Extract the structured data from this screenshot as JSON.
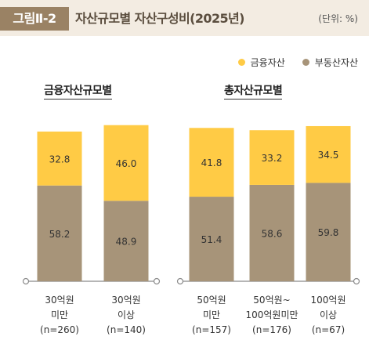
{
  "header": {
    "figure_number": "그림Ⅱ-2",
    "title": "자산규모별 자산구성비(2025년)",
    "unit": "(단위: %)"
  },
  "legend": [
    {
      "label": "금융자산",
      "color": "#ffcb45"
    },
    {
      "label": "부동산자산",
      "color": "#a79479"
    }
  ],
  "groups": [
    {
      "title": "금융자산규모별"
    },
    {
      "title": "총자산규모별"
    }
  ],
  "chart_data": {
    "type": "bar",
    "stacked": true,
    "ylim": [
      0,
      100
    ],
    "categories": [
      [
        "30억원",
        "미만",
        "(n=260)"
      ],
      [
        "30억원",
        "이상",
        "(n=140)"
      ],
      [
        "50억원",
        "미만",
        "(n=157)"
      ],
      [
        "50억원~",
        "100억원미만",
        "(n=176)"
      ],
      [
        "100억원",
        "이상",
        "(n=67)"
      ]
    ],
    "series": [
      {
        "name": "부동산자산",
        "values": [
          58.2,
          48.9,
          51.4,
          58.6,
          59.8
        ],
        "value_labels": [
          "58.2",
          "48.9",
          "51.4",
          "58.6",
          "59.8"
        ],
        "color": "#a79479"
      },
      {
        "name": "금융자산",
        "values": [
          32.8,
          46.0,
          41.8,
          33.2,
          34.5
        ],
        "value_labels": [
          "32.8",
          "46.0",
          "41.8",
          "33.2",
          "34.5"
        ],
        "color": "#ffcb45"
      }
    ],
    "group_titles": [
      "금융자산규모별",
      "총자산규모별"
    ],
    "grid": false,
    "legend_position": "top-right"
  }
}
